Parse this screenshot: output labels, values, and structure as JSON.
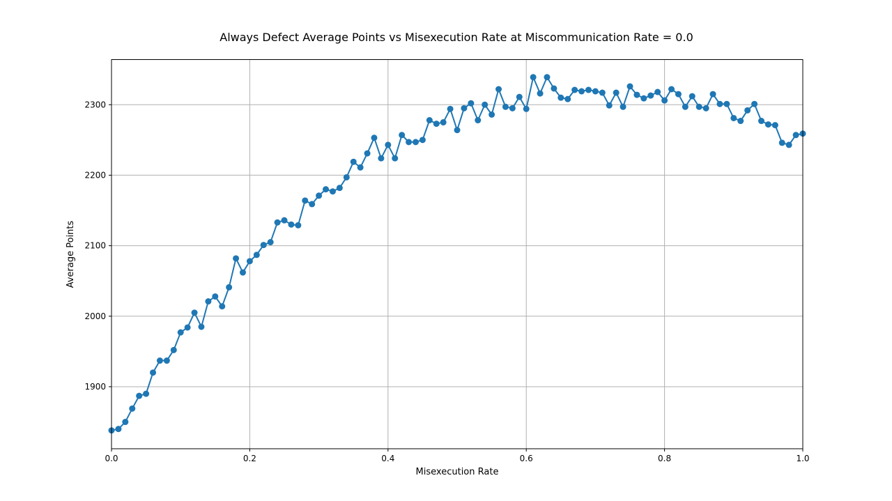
{
  "chart_data": {
    "type": "line",
    "title": "Always Defect Average Points vs Misexecution Rate at Miscommunication Rate = 0.0",
    "xlabel": "Misexecution Rate",
    "ylabel": "Average Points",
    "xlim": [
      0.0,
      1.0
    ],
    "ylim": [
      1812,
      2364
    ],
    "x_ticks": [
      0.0,
      0.2,
      0.4,
      0.6,
      0.8,
      1.0
    ],
    "x_tick_labels": [
      "0.0",
      "0.2",
      "0.4",
      "0.6",
      "0.8",
      "1.0"
    ],
    "y_ticks": [
      1900,
      2000,
      2100,
      2200,
      2300
    ],
    "y_tick_labels": [
      "1900",
      "2000",
      "2100",
      "2200",
      "2300"
    ],
    "grid": true,
    "color": "#1f77b4",
    "marker": "circle",
    "series": [
      {
        "x": [
          0.0,
          0.01,
          0.02,
          0.03,
          0.04,
          0.05,
          0.06,
          0.07,
          0.08,
          0.09,
          0.1,
          0.11,
          0.12,
          0.13,
          0.14,
          0.15,
          0.16,
          0.17,
          0.18,
          0.19,
          0.2,
          0.21,
          0.22,
          0.23,
          0.24,
          0.25,
          0.26,
          0.27,
          0.28,
          0.29,
          0.3,
          0.31,
          0.32,
          0.33,
          0.34,
          0.35,
          0.36,
          0.37,
          0.38,
          0.39,
          0.4,
          0.41,
          0.42,
          0.43,
          0.44,
          0.45,
          0.46,
          0.47,
          0.48,
          0.49,
          0.5,
          0.51,
          0.52,
          0.53,
          0.54,
          0.55,
          0.56,
          0.57,
          0.58,
          0.59,
          0.6,
          0.61,
          0.62,
          0.63,
          0.64,
          0.65,
          0.66,
          0.67,
          0.68,
          0.69,
          0.7,
          0.71,
          0.72,
          0.73,
          0.74,
          0.75,
          0.76,
          0.77,
          0.78,
          0.79,
          0.8,
          0.81,
          0.82,
          0.83,
          0.84,
          0.85,
          0.86,
          0.87,
          0.88,
          0.89,
          0.9,
          0.91,
          0.92,
          0.93,
          0.94,
          0.95,
          0.96,
          0.97,
          0.98,
          0.99,
          1.0
        ],
        "y": [
          1838,
          1840,
          1850,
          1869,
          1887,
          1890,
          1920,
          1937,
          1937,
          1952,
          1977,
          1984,
          2005,
          1985,
          2021,
          2028,
          2014,
          2041,
          2082,
          2062,
          2078,
          2087,
          2101,
          2105,
          2133,
          2136,
          2130,
          2129,
          2164,
          2159,
          2171,
          2180,
          2177,
          2182,
          2197,
          2219,
          2211,
          2231,
          2253,
          2224,
          2243,
          2224,
          2257,
          2247,
          2247,
          2250,
          2278,
          2273,
          2275,
          2294,
          2264,
          2295,
          2302,
          2278,
          2300,
          2286,
          2322,
          2297,
          2295,
          2311,
          2294,
          2339,
          2316,
          2339,
          2323,
          2310,
          2308,
          2321,
          2319,
          2321,
          2319,
          2317,
          2299,
          2317,
          2297,
          2326,
          2314,
          2309,
          2313,
          2318,
          2306,
          2322,
          2315,
          2297,
          2312,
          2297,
          2295,
          2315,
          2301,
          2301,
          2281,
          2277,
          2292,
          2301,
          2277,
          2272,
          2271,
          2246,
          2243,
          2257,
          2259
        ]
      }
    ]
  }
}
